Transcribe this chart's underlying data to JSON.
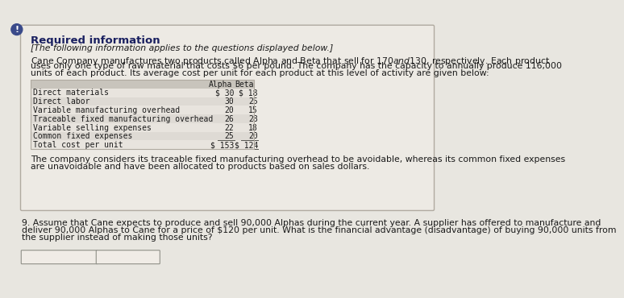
{
  "bg_color": "#e8e6e0",
  "box_bg": "#edeae4",
  "box_border": "#b0aaa0",
  "required_info_title": "Required information",
  "italic_subtitle": "[The following information applies to the questions displayed below.]",
  "paragraph1_line1": "Cane Company manufactures two products called Alpha and Beta that sell for $170 and $130, respectively. Each product",
  "paragraph1_line2": "uses only one type of raw material that costs $6 per pound. The company has the capacity to annually produce 116,000",
  "paragraph1_line3": "units of each product. Its average cost per unit for each product at this level of activity are given below:",
  "table_header": [
    "Alpha",
    "Beta"
  ],
  "table_rows": [
    [
      "Direct materials",
      "$ 30",
      "$ 18"
    ],
    [
      "Direct labor",
      "30",
      "25"
    ],
    [
      "Variable manufacturing overhead",
      "20",
      "15"
    ],
    [
      "Traceable fixed manufacturing overhead",
      "26",
      "28"
    ],
    [
      "Variable selling expenses",
      "22",
      "18"
    ],
    [
      "Common fixed expenses",
      "25",
      "20"
    ],
    [
      "Total cost per unit",
      "$ 153",
      "$ 124"
    ]
  ],
  "table_row_bg_even": "#e8e4de",
  "table_row_bg_odd": "#dedad4",
  "table_header_bg": "#c8c4bc",
  "table_total_row_bg": "#e8e4de",
  "paragraph2_line1": "The company considers its traceable fixed manufacturing overhead to be avoidable, whereas its common fixed expenses",
  "paragraph2_line2": "are unavoidable and have been allocated to products based on sales dollars.",
  "question_line1": "9. Assume that Cane expects to produce and sell 90,000 Alphas during the current year. A supplier has offered to manufacture and",
  "question_line2": "deliver 90,000 Alphas to Cane for a price of $120 per unit. What is the financial advantage (disadvantage) of buying 90,000 units from",
  "question_line3": "the supplier instead of making those units?",
  "input_box_color": "#f0ece6",
  "input_box_border": "#909088",
  "exclamation_bg": "#3a4a8a",
  "exclamation_color": "#ffffff",
  "text_color": "#1a1a1a",
  "title_color": "#1a2060",
  "body_fontsize": 7.8,
  "table_fontsize": 7.0,
  "title_fontsize": 9.5
}
